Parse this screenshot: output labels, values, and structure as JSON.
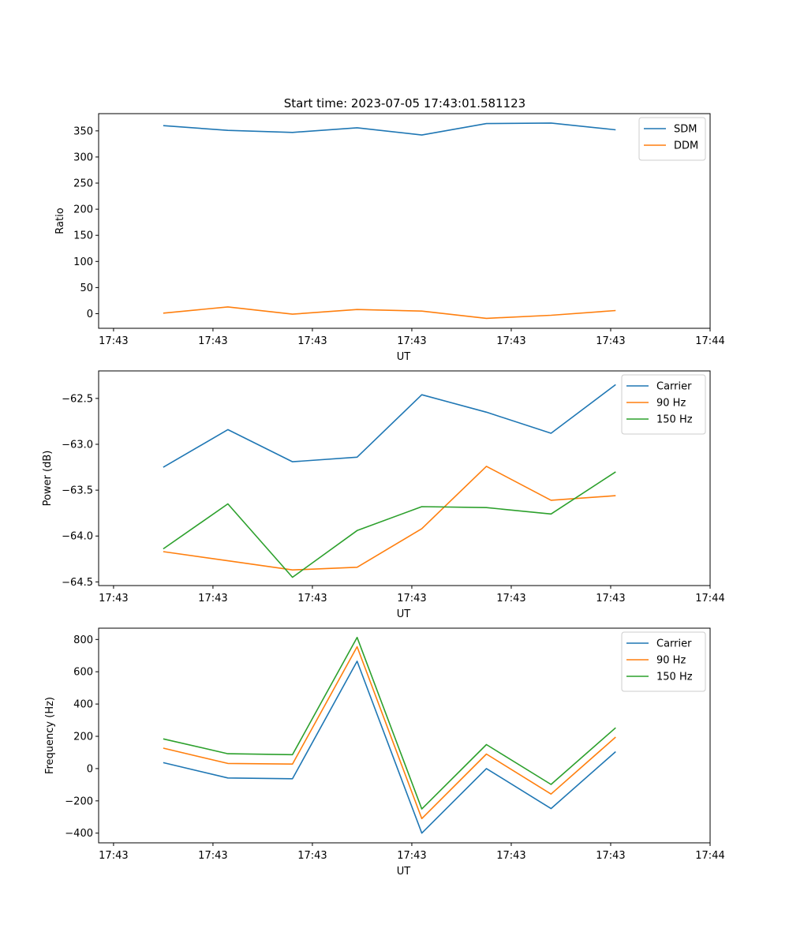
{
  "figure_title": "Start time: 2023-07-05 17:43:01.581123",
  "chart_data": [
    {
      "type": "line",
      "title": "Start time: 2023-07-05 17:43:01.581123",
      "xlabel": "UT",
      "ylabel": "Ratio",
      "x_tick_labels": [
        "17:43",
        "17:43",
        "17:43",
        "17:43",
        "17:43",
        "17:43",
        "17:44"
      ],
      "x_ticks": [
        0,
        1,
        2,
        3,
        4,
        5,
        6
      ],
      "xlim": [
        -0.15,
        6.0
      ],
      "x": [
        0.5,
        1.15,
        1.8,
        2.45,
        3.1,
        3.75,
        4.4,
        5.05
      ],
      "ylim": [
        -28,
        383
      ],
      "y_ticks": [
        0,
        50,
        100,
        150,
        200,
        250,
        300,
        350
      ],
      "y_tick_labels": [
        "0",
        "50",
        "100",
        "150",
        "200",
        "250",
        "300",
        "350"
      ],
      "legend": "top-right",
      "series": [
        {
          "name": "SDM",
          "color": "#1f77b4",
          "values": [
            360,
            351,
            347,
            356,
            342,
            364,
            365,
            352
          ]
        },
        {
          "name": "DDM",
          "color": "#ff7f0e",
          "values": [
            1,
            13,
            -1,
            8,
            5,
            -9,
            -3,
            6
          ]
        }
      ]
    },
    {
      "type": "line",
      "title": "",
      "xlabel": "UT",
      "ylabel": "Power (dB)",
      "x_tick_labels": [
        "17:43",
        "17:43",
        "17:43",
        "17:43",
        "17:43",
        "17:43",
        "17:44"
      ],
      "x_ticks": [
        0,
        1,
        2,
        3,
        4,
        5,
        6
      ],
      "xlim": [
        -0.15,
        6.0
      ],
      "x": [
        0.5,
        1.15,
        1.8,
        2.45,
        3.1,
        3.75,
        4.4,
        5.05
      ],
      "ylim": [
        -64.54,
        -62.2
      ],
      "y_ticks": [
        -64.5,
        -64.0,
        -63.5,
        -63.0,
        -62.5
      ],
      "y_tick_labels": [
        "−64.5",
        "−64.0",
        "−63.5",
        "−63.0",
        "−62.5"
      ],
      "legend": "top-right",
      "series": [
        {
          "name": "Carrier",
          "color": "#1f77b4",
          "values": [
            -63.25,
            -62.84,
            -63.19,
            -63.14,
            -62.46,
            -62.65,
            -62.88,
            -62.35
          ]
        },
        {
          "name": "90 Hz",
          "color": "#ff7f0e",
          "values": [
            -64.17,
            -64.27,
            -64.37,
            -64.34,
            -63.92,
            -63.24,
            -63.61,
            -63.56
          ]
        },
        {
          "name": "150 Hz",
          "color": "#2ca02c",
          "values": [
            -64.14,
            -63.65,
            -64.45,
            -63.94,
            -63.68,
            -63.69,
            -63.76,
            -63.3
          ]
        }
      ]
    },
    {
      "type": "line",
      "title": "",
      "xlabel": "UT",
      "ylabel": "Frequency (Hz)",
      "x_tick_labels": [
        "17:43",
        "17:43",
        "17:43",
        "17:43",
        "17:43",
        "17:43",
        "17:44"
      ],
      "x_ticks": [
        0,
        1,
        2,
        3,
        4,
        5,
        6
      ],
      "xlim": [
        -0.15,
        6.0
      ],
      "x": [
        0.5,
        1.15,
        1.8,
        2.45,
        3.1,
        3.75,
        4.4,
        5.05
      ],
      "ylim": [
        -460,
        870
      ],
      "y_ticks": [
        -400,
        -200,
        0,
        200,
        400,
        600,
        800
      ],
      "y_tick_labels": [
        "−400",
        "−200",
        "0",
        "200",
        "400",
        "600",
        "800"
      ],
      "legend": "top-right",
      "series": [
        {
          "name": "Carrier",
          "color": "#1f77b4",
          "values": [
            37,
            -58,
            -63,
            665,
            -400,
            0,
            -248,
            105
          ]
        },
        {
          "name": "90 Hz",
          "color": "#ff7f0e",
          "values": [
            127,
            32,
            28,
            755,
            -310,
            90,
            -158,
            195
          ]
        },
        {
          "name": "150 Hz",
          "color": "#2ca02c",
          "values": [
            184,
            92,
            86,
            813,
            -250,
            149,
            -98,
            253
          ]
        }
      ]
    }
  ]
}
